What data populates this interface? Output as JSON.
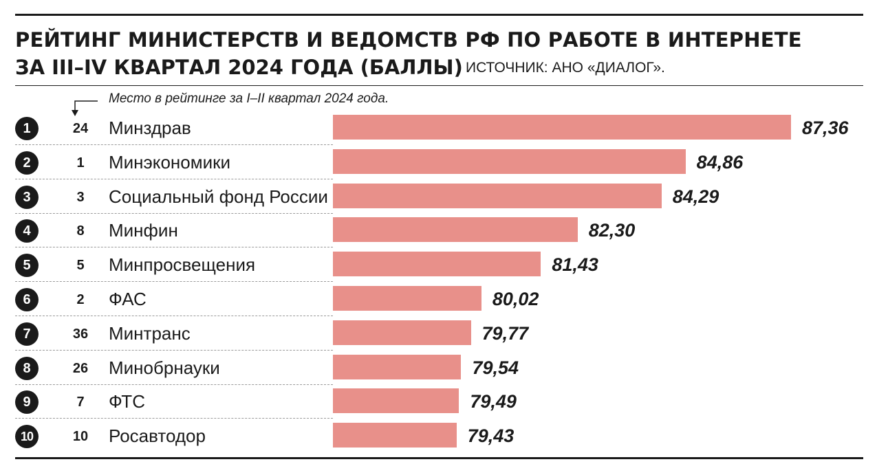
{
  "chart_data": {
    "type": "bar",
    "orientation": "horizontal",
    "title_line1": "РЕЙТИНГ МИНИСТЕРСТВ И ВЕДОМСТВ РФ ПО РАБОТЕ В ИНТЕРНЕТЕ",
    "title_line2": "ЗА III–IV КВАРТАЛ 2024 ГОДА (БАЛЛЫ)",
    "source": "ИСТОЧНИК: АНО «ДИАЛОГ».",
    "note": "Место в рейтинге за I–II квартал 2024 года.",
    "value_range": [
      76.5,
      87.36
    ],
    "rows": [
      {
        "rank": "1",
        "prev": "24",
        "name": "Минздрав",
        "value": 87.36,
        "label": "87,36"
      },
      {
        "rank": "2",
        "prev": "1",
        "name": "Минэкономики",
        "value": 84.86,
        "label": "84,86"
      },
      {
        "rank": "3",
        "prev": "3",
        "name": "Социальный фонд России",
        "value": 84.29,
        "label": "84,29"
      },
      {
        "rank": "4",
        "prev": "8",
        "name": "Минфин",
        "value": 82.3,
        "label": "82,30"
      },
      {
        "rank": "5",
        "prev": "5",
        "name": "Минпросвещения",
        "value": 81.43,
        "label": "81,43"
      },
      {
        "rank": "6",
        "prev": "2",
        "name": "ФАС",
        "value": 80.02,
        "label": "80,02"
      },
      {
        "rank": "7",
        "prev": "36",
        "name": "Минтранс",
        "value": 79.77,
        "label": "79,77"
      },
      {
        "rank": "8",
        "prev": "26",
        "name": "Минобрнауки",
        "value": 79.54,
        "label": "79,54"
      },
      {
        "rank": "9",
        "prev": "7",
        "name": "ФТС",
        "value": 79.49,
        "label": "79,49"
      },
      {
        "rank": "10",
        "prev": "10",
        "name": "Росавтодор",
        "value": 79.43,
        "label": "79,43"
      }
    ],
    "bar_color": "#e8908a"
  }
}
